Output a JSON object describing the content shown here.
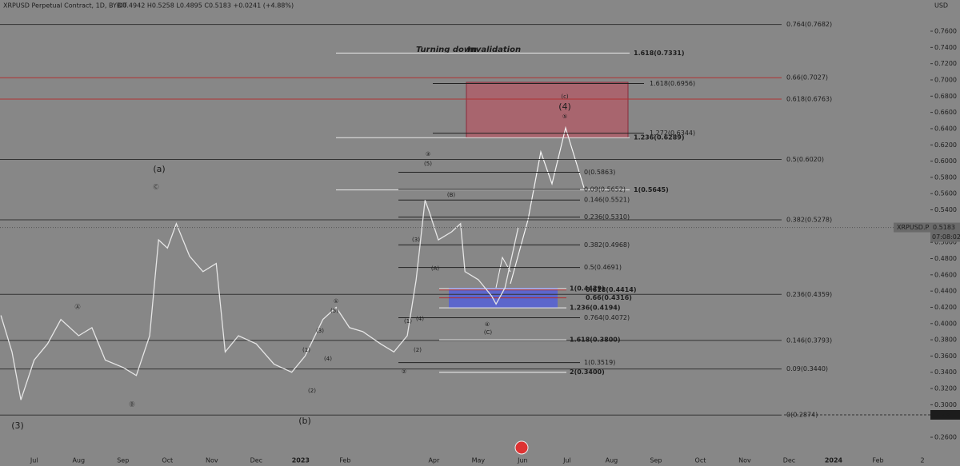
{
  "chart_data": {
    "type": "line",
    "title": "XRPUSD Perpetual Contract, 1D, BYBIT",
    "ohlc": "O0.4942 H0.5258 L0.4895 C0.5183 +0.0241 (+4.88%)",
    "y_unit": "USD",
    "categories": [
      "Jul",
      "Aug",
      "Sep",
      "Oct",
      "Nov",
      "Dec",
      "2023",
      "Feb",
      null,
      "Apr",
      "May",
      "Jun",
      "Jul",
      "Aug",
      "Sep",
      "Oct",
      "Nov",
      "Dec",
      "2024",
      "Feb",
      "2"
    ],
    "xlim": [
      -0.77,
      20.18
    ],
    "ylim": [
      0.2246,
      0.7984
    ],
    "yticks": [
      {
        "value": 0.26,
        "label": "0.2600"
      },
      {
        "value": 0.3,
        "label": "0.3000"
      },
      {
        "value": 0.32,
        "label": "0.3200"
      },
      {
        "value": 0.34,
        "label": "0.3400"
      },
      {
        "value": 0.36,
        "label": "0.3600"
      },
      {
        "value": 0.38,
        "label": "0.3800"
      },
      {
        "value": 0.4,
        "label": "0.4000"
      },
      {
        "value": 0.42,
        "label": "0.4200"
      },
      {
        "value": 0.44,
        "label": "0.4400"
      },
      {
        "value": 0.46,
        "label": "0.4600"
      },
      {
        "value": 0.48,
        "label": "0.4800"
      },
      {
        "value": 0.5,
        "label": "0.5000"
      },
      {
        "value": 0.54,
        "label": "0.5400"
      },
      {
        "value": 0.56,
        "label": "0.5600"
      },
      {
        "value": 0.58,
        "label": "0.5800"
      },
      {
        "value": 0.6,
        "label": "0.6000"
      },
      {
        "value": 0.62,
        "label": "0.6200"
      },
      {
        "value": 0.64,
        "label": "0.6400"
      },
      {
        "value": 0.66,
        "label": "0.6600"
      },
      {
        "value": 0.68,
        "label": "0.6800"
      },
      {
        "value": 0.7,
        "label": "0.7000"
      },
      {
        "value": 0.72,
        "label": "0.7200"
      },
      {
        "value": 0.74,
        "label": "0.7400"
      },
      {
        "value": 0.76,
        "label": "0.7600"
      }
    ],
    "series": [
      {
        "name": "XRPUSD.P",
        "color": "#e6e6e6",
        "x": [
          -0.75,
          -0.5,
          -0.3,
          0,
          0.3,
          0.6,
          1.0,
          1.3,
          1.6,
          2.0,
          2.3,
          2.6,
          2.8,
          3.0,
          3.2,
          3.5,
          3.8,
          4.1,
          4.3,
          4.6,
          5.0,
          5.4,
          5.8,
          6.1,
          6.5,
          6.8,
          7.1,
          7.4,
          7.8,
          8.1,
          8.4,
          8.6,
          8.8,
          8.9,
          9.1,
          9.4,
          9.6,
          9.7,
          10.0,
          10.3,
          10.4,
          10.6,
          10.9
        ],
        "values": [
          0.41,
          0.365,
          0.306,
          0.355,
          0.375,
          0.405,
          0.385,
          0.395,
          0.355,
          0.346,
          0.336,
          0.385,
          0.503,
          0.493,
          0.523,
          0.483,
          0.464,
          0.474,
          0.365,
          0.385,
          0.375,
          0.35,
          0.34,
          0.36,
          0.405,
          0.42,
          0.395,
          0.39,
          0.375,
          0.365,
          0.385,
          0.454,
          0.552,
          0.537,
          0.503,
          0.513,
          0.523,
          0.464,
          0.454,
          0.434,
          0.424,
          0.444,
          0.5183
        ]
      }
    ],
    "countdown": "07:08:02",
    "marker_price": 0.2876,
    "long_levels": [
      {
        "label": "0.764(0.7682)",
        "value": 0.7682,
        "color": "#333333"
      },
      {
        "label": "0.66(0.7027)",
        "value": 0.7027,
        "color": "#b03030"
      },
      {
        "label": "0.618(0.6763)",
        "value": 0.6763,
        "color": "#b03030"
      },
      {
        "label": "0.5(0.6020)",
        "value": 0.602,
        "color": "#333333"
      },
      {
        "label": "0.382(0.5278)",
        "value": 0.5278,
        "color": "#333333"
      },
      {
        "label": "0.236(0.4359)",
        "value": 0.4359,
        "color": "#333333"
      },
      {
        "label": "0.146(0.3793)",
        "value": 0.3793,
        "color": "#333333"
      },
      {
        "label": "0.09(0.3440)",
        "value": 0.344,
        "color": "#333333"
      },
      {
        "label": "0(0.2874)",
        "value": 0.2874,
        "color": "#333333"
      }
    ],
    "projection_levels": [
      {
        "label": "1.618(0.7331)",
        "value": 0.7331
      },
      {
        "label": "1.236(0.6289)",
        "value": 0.6289
      },
      {
        "label": "1(0.5645)",
        "value": 0.5645
      }
    ],
    "ext_levels": [
      {
        "label": "1.618(0.6956)",
        "value": 0.6956
      },
      {
        "label": "1.272(0.6344)",
        "value": 0.6344
      }
    ],
    "retrace_levels": [
      {
        "label": "0(0.5863)",
        "value": 0.5863
      },
      {
        "label": "0.09(0.5652)",
        "value": 0.5652
      },
      {
        "label": "0.146(0.5521)",
        "value": 0.5521
      },
      {
        "label": "0.236(0.5310)",
        "value": 0.531
      },
      {
        "label": "0.382(0.4968)",
        "value": 0.4968
      },
      {
        "label": "0.5(0.4691)",
        "value": 0.4691
      },
      {
        "label": "0.764(0.4072)",
        "value": 0.4072
      },
      {
        "label": "1(0.3519)",
        "value": 0.3519
      }
    ],
    "target_levels": [
      {
        "label": "1(0.4429)",
        "value": 0.4429,
        "color": "#f2f2f2"
      },
      {
        "label": "0.618(0.4414)",
        "value": 0.4414,
        "color": "#b03030"
      },
      {
        "label": "0.66(0.4316)",
        "value": 0.4316,
        "color": "#b03030"
      },
      {
        "label": "1.236(0.4194)",
        "value": 0.4194,
        "color": "#f2f2f2"
      },
      {
        "label": "1.618(0.3800)",
        "value": 0.38,
        "color": "#f2f2f2"
      },
      {
        "label": "2(0.3400)",
        "value": 0.34,
        "color": "#f2f2f2"
      }
    ],
    "note": "Turning down",
    "note2": "Invalidation",
    "wave_labels": [
      "(a)",
      "Ⓒ",
      "Ⓐ",
      "Ⓑ",
      "(3)",
      "(b)",
      "①",
      "(5)",
      "(3)",
      "(4)",
      "(1)",
      "(2)",
      "(1)",
      "(2)",
      "②",
      "(4)",
      "(3)",
      "(A)",
      "(B)",
      "③",
      "(5)",
      "④",
      "(C)",
      "(c)",
      "(4)",
      "⑤"
    ]
  }
}
